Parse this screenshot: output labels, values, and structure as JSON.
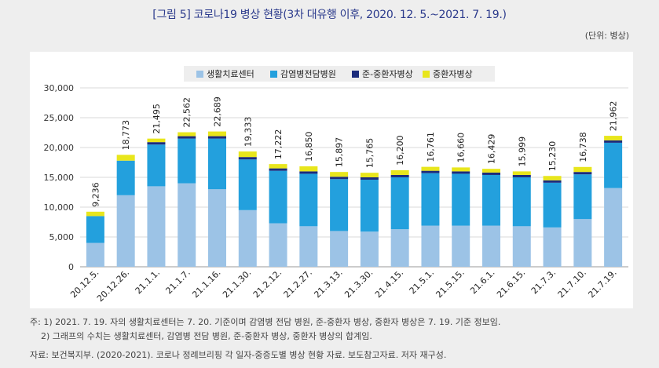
{
  "title": "[그림 5] 코로나19 병상 현황(3차 대유행 이후, 2020. 12. 5.~2021. 7. 19.)",
  "unit": "(단위: 병상)",
  "notes": [
    "주: 1) 2021. 7. 19. 자의 생활치료센터는 7. 20. 기준이며 감염병 전담 병원, 준-중환자 병상, 중환자 병상은 7. 19. 기준 정보임.",
    "2) 그래프의 수치는 생활치료센터, 감염병 전담 병원, 준-중환자 병상, 중환자 병상의 합계임."
  ],
  "source": "자료: 보건복지부. (2020-2021). 코로나 정례브리핑 각 일자-중증도별 병상 현황 자료. 보도참고자료. 저자 재구성.",
  "chart_data": {
    "type": "bar",
    "stacked": true,
    "categories": [
      "20.12.5.",
      "20.12.26.",
      "21.1.1.",
      "21.1.7.",
      "21.1.16.",
      "21.1.30.",
      "21.2.12.",
      "21.2.27.",
      "21.3.13.",
      "21.3.30.",
      "21.4.15.",
      "21.5.1.",
      "21.5.15.",
      "21.6.1.",
      "21.6.15.",
      "21.7.3.",
      "21.7.10.",
      "21.7.19."
    ],
    "series": [
      {
        "name": "생활치료센터",
        "color": "#9cc3e6",
        "values": [
          4000,
          12000,
          13500,
          14000,
          13000,
          9500,
          7300,
          6800,
          6000,
          5900,
          6300,
          6900,
          6900,
          6900,
          6800,
          6600,
          8000,
          13200
        ]
      },
      {
        "name": "감염병전담병원",
        "color": "#23a0dd",
        "values": [
          4500,
          5800,
          7000,
          7500,
          8500,
          8500,
          8800,
          8800,
          8700,
          8700,
          8700,
          8800,
          8700,
          8500,
          8200,
          7500,
          7500,
          7600
        ]
      },
      {
        "name": "준-중환자병상",
        "color": "#1c2c7c",
        "values": [
          0,
          0,
          400,
          400,
          400,
          400,
          400,
          400,
          400,
          400,
          400,
          400,
          400,
          400,
          400,
          400,
          400,
          400
        ]
      },
      {
        "name": "중환자병상",
        "color": "#e8e61c",
        "values": [
          736,
          973,
          595,
          662,
          789,
          933,
          722,
          850,
          797,
          765,
          800,
          661,
          660,
          629,
          599,
          730,
          838,
          762
        ]
      }
    ],
    "totals": [
      "9,236",
      "18,773",
      "21,495",
      "22,562",
      "22,689",
      "19,333",
      "17,222",
      "16,850",
      "15,897",
      "15,765",
      "16,200",
      "16,761",
      "16,660",
      "16,429",
      "15,999",
      "15,230",
      "16,738",
      "21,962"
    ],
    "ylim": [
      0,
      30000
    ],
    "yticks": [
      "0",
      "5,000",
      "10,000",
      "15,000",
      "20,000",
      "25,000",
      "30,000"
    ],
    "grid": true,
    "legend": "top-center"
  }
}
